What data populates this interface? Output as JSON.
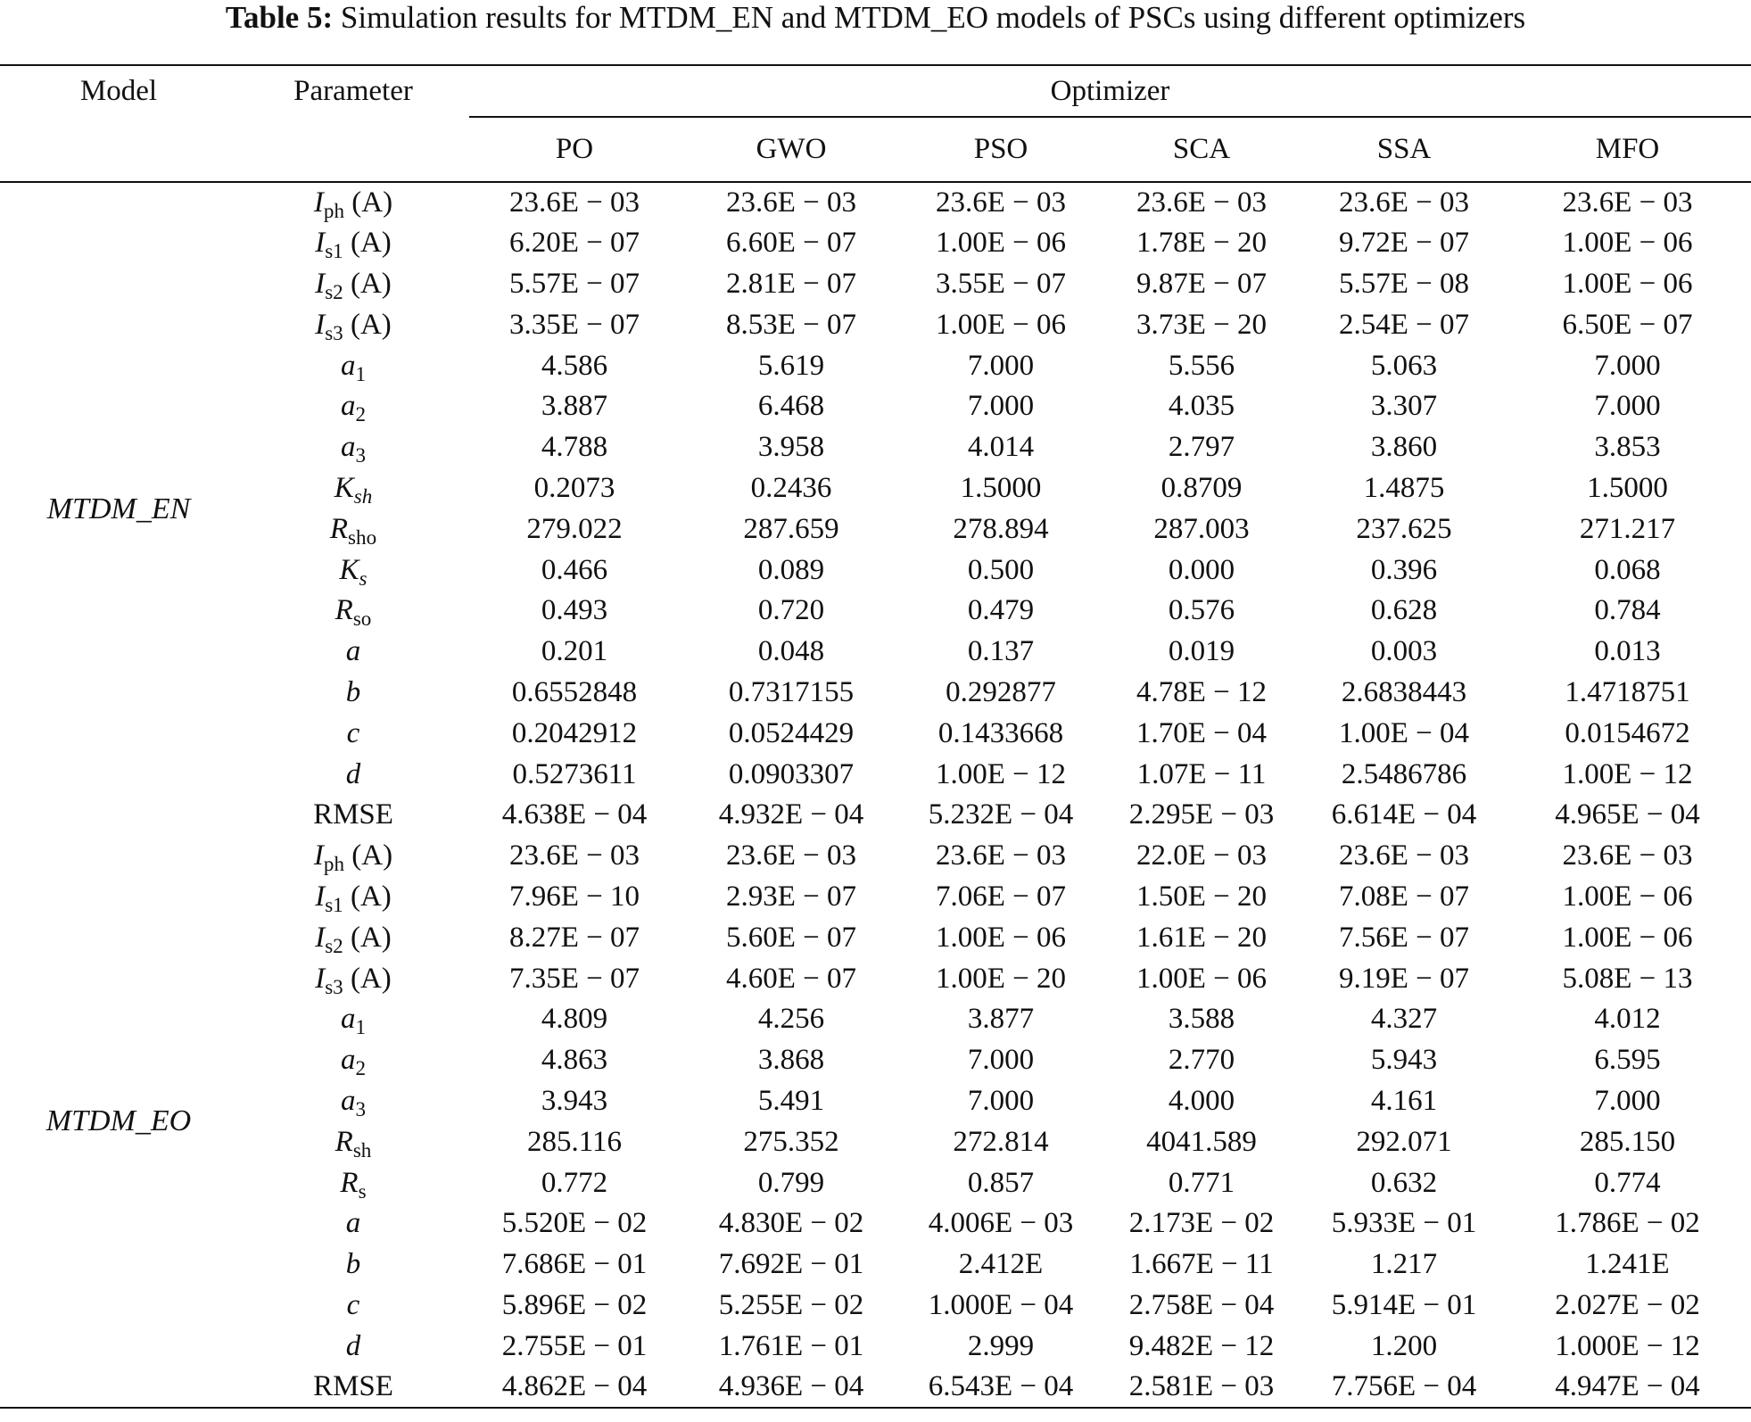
{
  "caption": {
    "label": "Table 5:",
    "text": " Simulation results for MTDM_EN and MTDM_EO models of PSCs using different optimizers"
  },
  "headers": {
    "model": "Model",
    "parameter": "Parameter",
    "optimizer": "Optimizer",
    "columns": [
      "PO",
      "GWO",
      "PSO",
      "SCA",
      "SSA",
      "MFO"
    ]
  },
  "groups": [
    {
      "model": "MTDM_EN",
      "rows": [
        {
          "sym": "I",
          "sub": "ph",
          "unit": " (A)",
          "italic": true,
          "values": [
            "23.6E − 03",
            "23.6E − 03",
            "23.6E − 03",
            "23.6E − 03",
            "23.6E − 03",
            "23.6E − 03"
          ]
        },
        {
          "sym": "I",
          "sub": "s1",
          "unit": " (A)",
          "italic": true,
          "values": [
            "6.20E − 07",
            "6.60E − 07",
            "1.00E − 06",
            "1.78E − 20",
            "9.72E − 07",
            "1.00E − 06"
          ]
        },
        {
          "sym": "I",
          "sub": "s2",
          "unit": " (A)",
          "italic": true,
          "values": [
            "5.57E − 07",
            "2.81E − 07",
            "3.55E − 07",
            "9.87E − 07",
            "5.57E − 08",
            "1.00E − 06"
          ]
        },
        {
          "sym": "I",
          "sub": "s3",
          "unit": " (A)",
          "italic": true,
          "values": [
            "3.35E − 07",
            "8.53E − 07",
            "1.00E − 06",
            "3.73E − 20",
            "2.54E − 07",
            "6.50E − 07"
          ]
        },
        {
          "sym": "a",
          "sub": "1",
          "unit": "",
          "italic": true,
          "values": [
            "4.586",
            "5.619",
            "7.000",
            "5.556",
            "5.063",
            "7.000"
          ]
        },
        {
          "sym": "a",
          "sub": "2",
          "unit": "",
          "italic": true,
          "values": [
            "3.887",
            "6.468",
            "7.000",
            "4.035",
            "3.307",
            "7.000"
          ]
        },
        {
          "sym": "a",
          "sub": "3",
          "unit": "",
          "italic": true,
          "values": [
            "4.788",
            "3.958",
            "4.014",
            "2.797",
            "3.860",
            "3.853"
          ]
        },
        {
          "sym": "K",
          "sub": "sh",
          "unit": "",
          "italic": true,
          "subItalic": true,
          "values": [
            "0.2073",
            "0.2436",
            "1.5000",
            "0.8709",
            "1.4875",
            "1.5000"
          ]
        },
        {
          "sym": "R",
          "sub": "sho",
          "unit": "",
          "italic": true,
          "values": [
            "279.022",
            "287.659",
            "278.894",
            "287.003",
            "237.625",
            "271.217"
          ]
        },
        {
          "sym": "K",
          "sub": "s",
          "unit": "",
          "italic": true,
          "subItalic": true,
          "values": [
            "0.466",
            "0.089",
            "0.500",
            "0.000",
            "0.396",
            "0.068"
          ]
        },
        {
          "sym": "R",
          "sub": "so",
          "unit": "",
          "italic": true,
          "values": [
            "0.493",
            "0.720",
            "0.479",
            "0.576",
            "0.628",
            "0.784"
          ]
        },
        {
          "sym": "a",
          "sub": "",
          "unit": "",
          "italic": true,
          "values": [
            "0.201",
            "0.048",
            "0.137",
            "0.019",
            "0.003",
            "0.013"
          ]
        },
        {
          "sym": "b",
          "sub": "",
          "unit": "",
          "italic": true,
          "values": [
            "0.6552848",
            "0.7317155",
            "0.292877",
            "4.78E − 12",
            "2.6838443",
            "1.4718751"
          ]
        },
        {
          "sym": "c",
          "sub": "",
          "unit": "",
          "italic": true,
          "values": [
            "0.2042912",
            "0.0524429",
            "0.1433668",
            "1.70E − 04",
            "1.00E − 04",
            "0.0154672"
          ]
        },
        {
          "sym": "d",
          "sub": "",
          "unit": "",
          "italic": true,
          "values": [
            "0.5273611",
            "0.0903307",
            "1.00E − 12",
            "1.07E − 11",
            "2.5486786",
            "1.00E − 12"
          ]
        },
        {
          "sym": "RMSE",
          "sub": "",
          "unit": "",
          "italic": false,
          "values": [
            "4.638E − 04",
            "4.932E − 04",
            "5.232E − 04",
            "2.295E − 03",
            "6.614E − 04",
            "4.965E − 04"
          ]
        }
      ]
    },
    {
      "model": "MTDM_EO",
      "rows": [
        {
          "sym": "I",
          "sub": "ph",
          "unit": " (A)",
          "italic": true,
          "values": [
            "23.6E − 03",
            "23.6E − 03",
            "23.6E − 03",
            "22.0E − 03",
            "23.6E − 03",
            "23.6E − 03"
          ]
        },
        {
          "sym": "I",
          "sub": "s1",
          "unit": " (A)",
          "italic": true,
          "values": [
            "7.96E − 10",
            "2.93E − 07",
            "7.06E − 07",
            "1.50E − 20",
            "7.08E − 07",
            "1.00E − 06"
          ]
        },
        {
          "sym": "I",
          "sub": "s2",
          "unit": " (A)",
          "italic": true,
          "values": [
            "8.27E − 07",
            "5.60E − 07",
            "1.00E − 06",
            "1.61E − 20",
            "7.56E − 07",
            "1.00E − 06"
          ]
        },
        {
          "sym": "I",
          "sub": "s3",
          "unit": " (A)",
          "italic": true,
          "values": [
            "7.35E − 07",
            "4.60E − 07",
            "1.00E − 20",
            "1.00E − 06",
            "9.19E − 07",
            "5.08E − 13"
          ]
        },
        {
          "sym": "a",
          "sub": "1",
          "unit": "",
          "italic": true,
          "values": [
            "4.809",
            "4.256",
            "3.877",
            "3.588",
            "4.327",
            "4.012"
          ]
        },
        {
          "sym": "a",
          "sub": "2",
          "unit": "",
          "italic": true,
          "values": [
            "4.863",
            "3.868",
            "7.000",
            "2.770",
            "5.943",
            "6.595"
          ]
        },
        {
          "sym": "a",
          "sub": "3",
          "unit": "",
          "italic": true,
          "values": [
            "3.943",
            "5.491",
            "7.000",
            "4.000",
            "4.161",
            "7.000"
          ]
        },
        {
          "sym": "R",
          "sub": "sh",
          "unit": "",
          "italic": true,
          "values": [
            "285.116",
            "275.352",
            "272.814",
            "4041.589",
            "292.071",
            "285.150"
          ]
        },
        {
          "sym": "R",
          "sub": "s",
          "unit": "",
          "italic": true,
          "values": [
            "0.772",
            "0.799",
            "0.857",
            "0.771",
            "0.632",
            "0.774"
          ]
        },
        {
          "sym": "a",
          "sub": "",
          "unit": "",
          "italic": true,
          "values": [
            "5.520E − 02",
            "4.830E − 02",
            "4.006E − 03",
            "2.173E − 02",
            "5.933E − 01",
            "1.786E − 02"
          ]
        },
        {
          "sym": "b",
          "sub": "",
          "unit": "",
          "italic": true,
          "values": [
            "7.686E − 01",
            "7.692E − 01",
            "2.412E",
            "1.667E − 11",
            "1.217",
            "1.241E"
          ]
        },
        {
          "sym": "c",
          "sub": "",
          "unit": "",
          "italic": true,
          "values": [
            "5.896E − 02",
            "5.255E − 02",
            "1.000E − 04",
            "2.758E − 04",
            "5.914E − 01",
            "2.027E − 02"
          ]
        },
        {
          "sym": "d",
          "sub": "",
          "unit": "",
          "italic": true,
          "values": [
            "2.755E − 01",
            "1.761E − 01",
            "2.999",
            "9.482E − 12",
            "1.200",
            "1.000E − 12"
          ]
        },
        {
          "sym": "RMSE",
          "sub": "",
          "unit": "",
          "italic": false,
          "values": [
            "4.862E − 04",
            "4.936E − 04",
            "6.543E − 04",
            "2.581E − 03",
            "7.756E − 04",
            "4.947E − 04"
          ]
        }
      ]
    }
  ]
}
